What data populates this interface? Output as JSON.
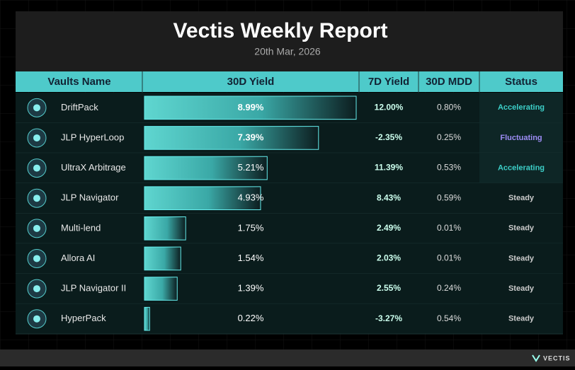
{
  "header": {
    "title": "Vectis Weekly Report",
    "date": "20th Mar, 2026"
  },
  "table": {
    "headers": [
      "Vaults Name",
      "30D Yield",
      "7D Yield",
      "30D MDD",
      "Status"
    ],
    "rows": [
      {
        "name": "DriftPack",
        "yield_30d": 8.99,
        "yield_30d_label": "8.99%",
        "yield_7d": "12.00%",
        "mdd_30d": "0.80%",
        "status": "Accelerating"
      },
      {
        "name": "JLP HyperLoop",
        "yield_30d": 7.39,
        "yield_30d_label": "7.39%",
        "yield_7d": "-2.35%",
        "mdd_30d": "0.25%",
        "status": "Fluctuating"
      },
      {
        "name": "UltraX Arbitrage",
        "yield_30d": 5.21,
        "yield_30d_label": "5.21%",
        "yield_7d": "11.39%",
        "mdd_30d": "0.53%",
        "status": "Accelerating"
      },
      {
        "name": "JLP Navigator",
        "yield_30d": 4.93,
        "yield_30d_label": "4.93%",
        "yield_7d": "8.43%",
        "mdd_30d": "0.59%",
        "status": "Steady"
      },
      {
        "name": "Multi-lend",
        "yield_30d": 1.75,
        "yield_30d_label": "1.75%",
        "yield_7d": "2.49%",
        "mdd_30d": "0.01%",
        "status": "Steady"
      },
      {
        "name": "Allora AI",
        "yield_30d": 1.54,
        "yield_30d_label": "1.54%",
        "yield_7d": "2.03%",
        "mdd_30d": "0.01%",
        "status": "Steady"
      },
      {
        "name": "JLP Navigator II",
        "yield_30d": 1.39,
        "yield_30d_label": "1.39%",
        "yield_7d": "2.55%",
        "mdd_30d": "0.24%",
        "status": "Steady"
      },
      {
        "name": "HyperPack",
        "yield_30d": 0.22,
        "yield_30d_label": "0.22%",
        "yield_7d": "-3.27%",
        "mdd_30d": "0.54%",
        "status": "Steady"
      }
    ]
  },
  "footer": {
    "brand": "VECTIS"
  }
}
